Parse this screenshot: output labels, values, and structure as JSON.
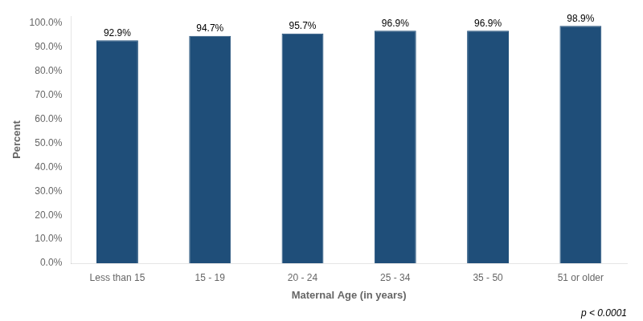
{
  "chart_data": {
    "type": "bar",
    "categories": [
      "Less than 15",
      "15 - 19",
      "20 - 24",
      "25 - 34",
      "35 - 50",
      "51 or older"
    ],
    "values": [
      92.9,
      94.7,
      95.7,
      96.9,
      96.9,
      98.9
    ],
    "value_labels": [
      "92.9%",
      "94.7%",
      "95.7%",
      "96.9%",
      "96.9%",
      "98.9%"
    ],
    "data_labels": true,
    "color": "#1F4E79",
    "xlabel": "Maternal Age (in years)",
    "ylabel": "Percent",
    "ylim": [
      0,
      103
    ],
    "yticks": [
      {
        "value": 0,
        "label": "0.0%"
      },
      {
        "value": 10,
        "label": "10.0%"
      },
      {
        "value": 20,
        "label": "20.0%"
      },
      {
        "value": 30,
        "label": "30.0%"
      },
      {
        "value": 40,
        "label": "40.0%"
      },
      {
        "value": 50,
        "label": "50.0%"
      },
      {
        "value": 60,
        "label": "60.0%"
      },
      {
        "value": 70,
        "label": "70.0%"
      },
      {
        "value": 80,
        "label": "80.0%"
      },
      {
        "value": 90,
        "label": "90.0%"
      },
      {
        "value": 100,
        "label": "100.0%"
      }
    ],
    "annotation": "p < 0.0001",
    "grid": false
  }
}
